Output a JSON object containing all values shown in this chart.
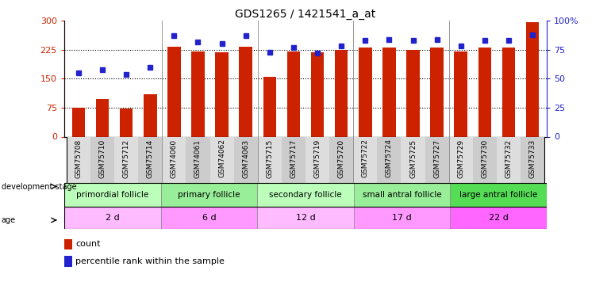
{
  "title": "GDS1265 / 1421541_a_at",
  "categories": [
    "GSM75708",
    "GSM75710",
    "GSM75712",
    "GSM75714",
    "GSM74060",
    "GSM74061",
    "GSM74062",
    "GSM74063",
    "GSM75715",
    "GSM75717",
    "GSM75719",
    "GSM75720",
    "GSM75722",
    "GSM75724",
    "GSM75725",
    "GSM75727",
    "GSM75729",
    "GSM75730",
    "GSM75732",
    "GSM75733"
  ],
  "bar_values": [
    75,
    97,
    72,
    110,
    233,
    220,
    218,
    232,
    155,
    220,
    218,
    225,
    230,
    230,
    225,
    230,
    220,
    230,
    230,
    297
  ],
  "dot_percentiles": [
    55,
    58,
    54,
    60,
    87,
    82,
    80,
    87,
    73,
    77,
    72,
    78,
    83,
    84,
    83,
    84,
    78,
    83,
    83,
    88
  ],
  "bar_color": "#cc2200",
  "dot_color": "#2222cc",
  "ylim_left": [
    0,
    300
  ],
  "ylim_right": [
    0,
    100
  ],
  "yticks_left": [
    0,
    75,
    150,
    225,
    300
  ],
  "yticks_right": [
    0,
    25,
    50,
    75,
    100
  ],
  "ytick_labels_right": [
    "0",
    "25",
    "50",
    "75",
    "100%"
  ],
  "groups": [
    {
      "label": "primordial follicle",
      "age": "2 d",
      "start": 0,
      "end": 4
    },
    {
      "label": "primary follicle",
      "age": "6 d",
      "start": 4,
      "end": 8
    },
    {
      "label": "secondary follicle",
      "age": "12 d",
      "start": 8,
      "end": 12
    },
    {
      "label": "small antral follicle",
      "age": "17 d",
      "start": 12,
      "end": 16
    },
    {
      "label": "large antral follicle",
      "age": "22 d",
      "start": 16,
      "end": 20
    }
  ],
  "group_colors": [
    "#bbffbb",
    "#99ee99",
    "#bbffbb",
    "#99ee99",
    "#55dd55"
  ],
  "age_colors": [
    "#ffbbff",
    "#ff99ff",
    "#ffbbff",
    "#ff99ff",
    "#ff66ff"
  ],
  "axis_label_color_left": "#cc2200",
  "axis_label_color_right": "#2222cc",
  "bar_width": 0.55,
  "legend_count_label": "count",
  "legend_pct_label": "percentile rank within the sample",
  "tick_bg_colors": [
    "#dddddd",
    "#cccccc"
  ]
}
